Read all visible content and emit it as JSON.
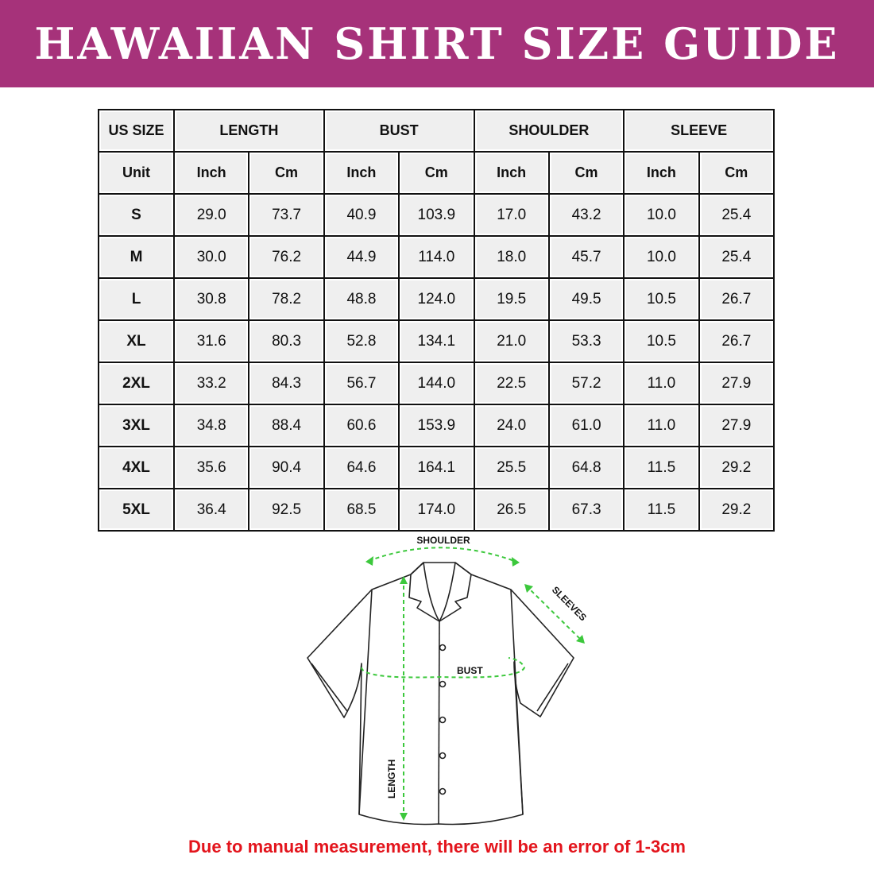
{
  "title": "HAWAIIAN SHIRT SIZE GUIDE",
  "colors": {
    "banner": "#a6327a",
    "arrows": "#3cc83c",
    "note": "#e3141c"
  },
  "table": {
    "group_headers": [
      "US SIZE",
      "LENGTH",
      "BUST",
      "SHOULDER",
      "SLEEVE"
    ],
    "unit_row": [
      "Unit",
      "Inch",
      "Cm",
      "Inch",
      "Cm",
      "Inch",
      "Cm",
      "Inch",
      "Cm"
    ],
    "rows": [
      [
        "S",
        "29.0",
        "73.7",
        "40.9",
        "103.9",
        "17.0",
        "43.2",
        "10.0",
        "25.4"
      ],
      [
        "M",
        "30.0",
        "76.2",
        "44.9",
        "114.0",
        "18.0",
        "45.7",
        "10.0",
        "25.4"
      ],
      [
        "L",
        "30.8",
        "78.2",
        "48.8",
        "124.0",
        "19.5",
        "49.5",
        "10.5",
        "26.7"
      ],
      [
        "XL",
        "31.6",
        "80.3",
        "52.8",
        "134.1",
        "21.0",
        "53.3",
        "10.5",
        "26.7"
      ],
      [
        "2XL",
        "33.2",
        "84.3",
        "56.7",
        "144.0",
        "22.5",
        "57.2",
        "11.0",
        "27.9"
      ],
      [
        "3XL",
        "34.8",
        "88.4",
        "60.6",
        "153.9",
        "24.0",
        "61.0",
        "11.0",
        "27.9"
      ],
      [
        "4XL",
        "35.6",
        "90.4",
        "64.6",
        "164.1",
        "25.5",
        "64.8",
        "11.5",
        "29.2"
      ],
      [
        "5XL",
        "36.4",
        "92.5",
        "68.5",
        "174.0",
        "26.5",
        "67.3",
        "11.5",
        "29.2"
      ]
    ]
  },
  "diagram": {
    "shoulder": "SHOULDER",
    "sleeves": "SLEEVES",
    "bust": "BUST",
    "length": "LENGTH"
  },
  "note": "Due to manual measurement, there will be an error of 1-3cm"
}
